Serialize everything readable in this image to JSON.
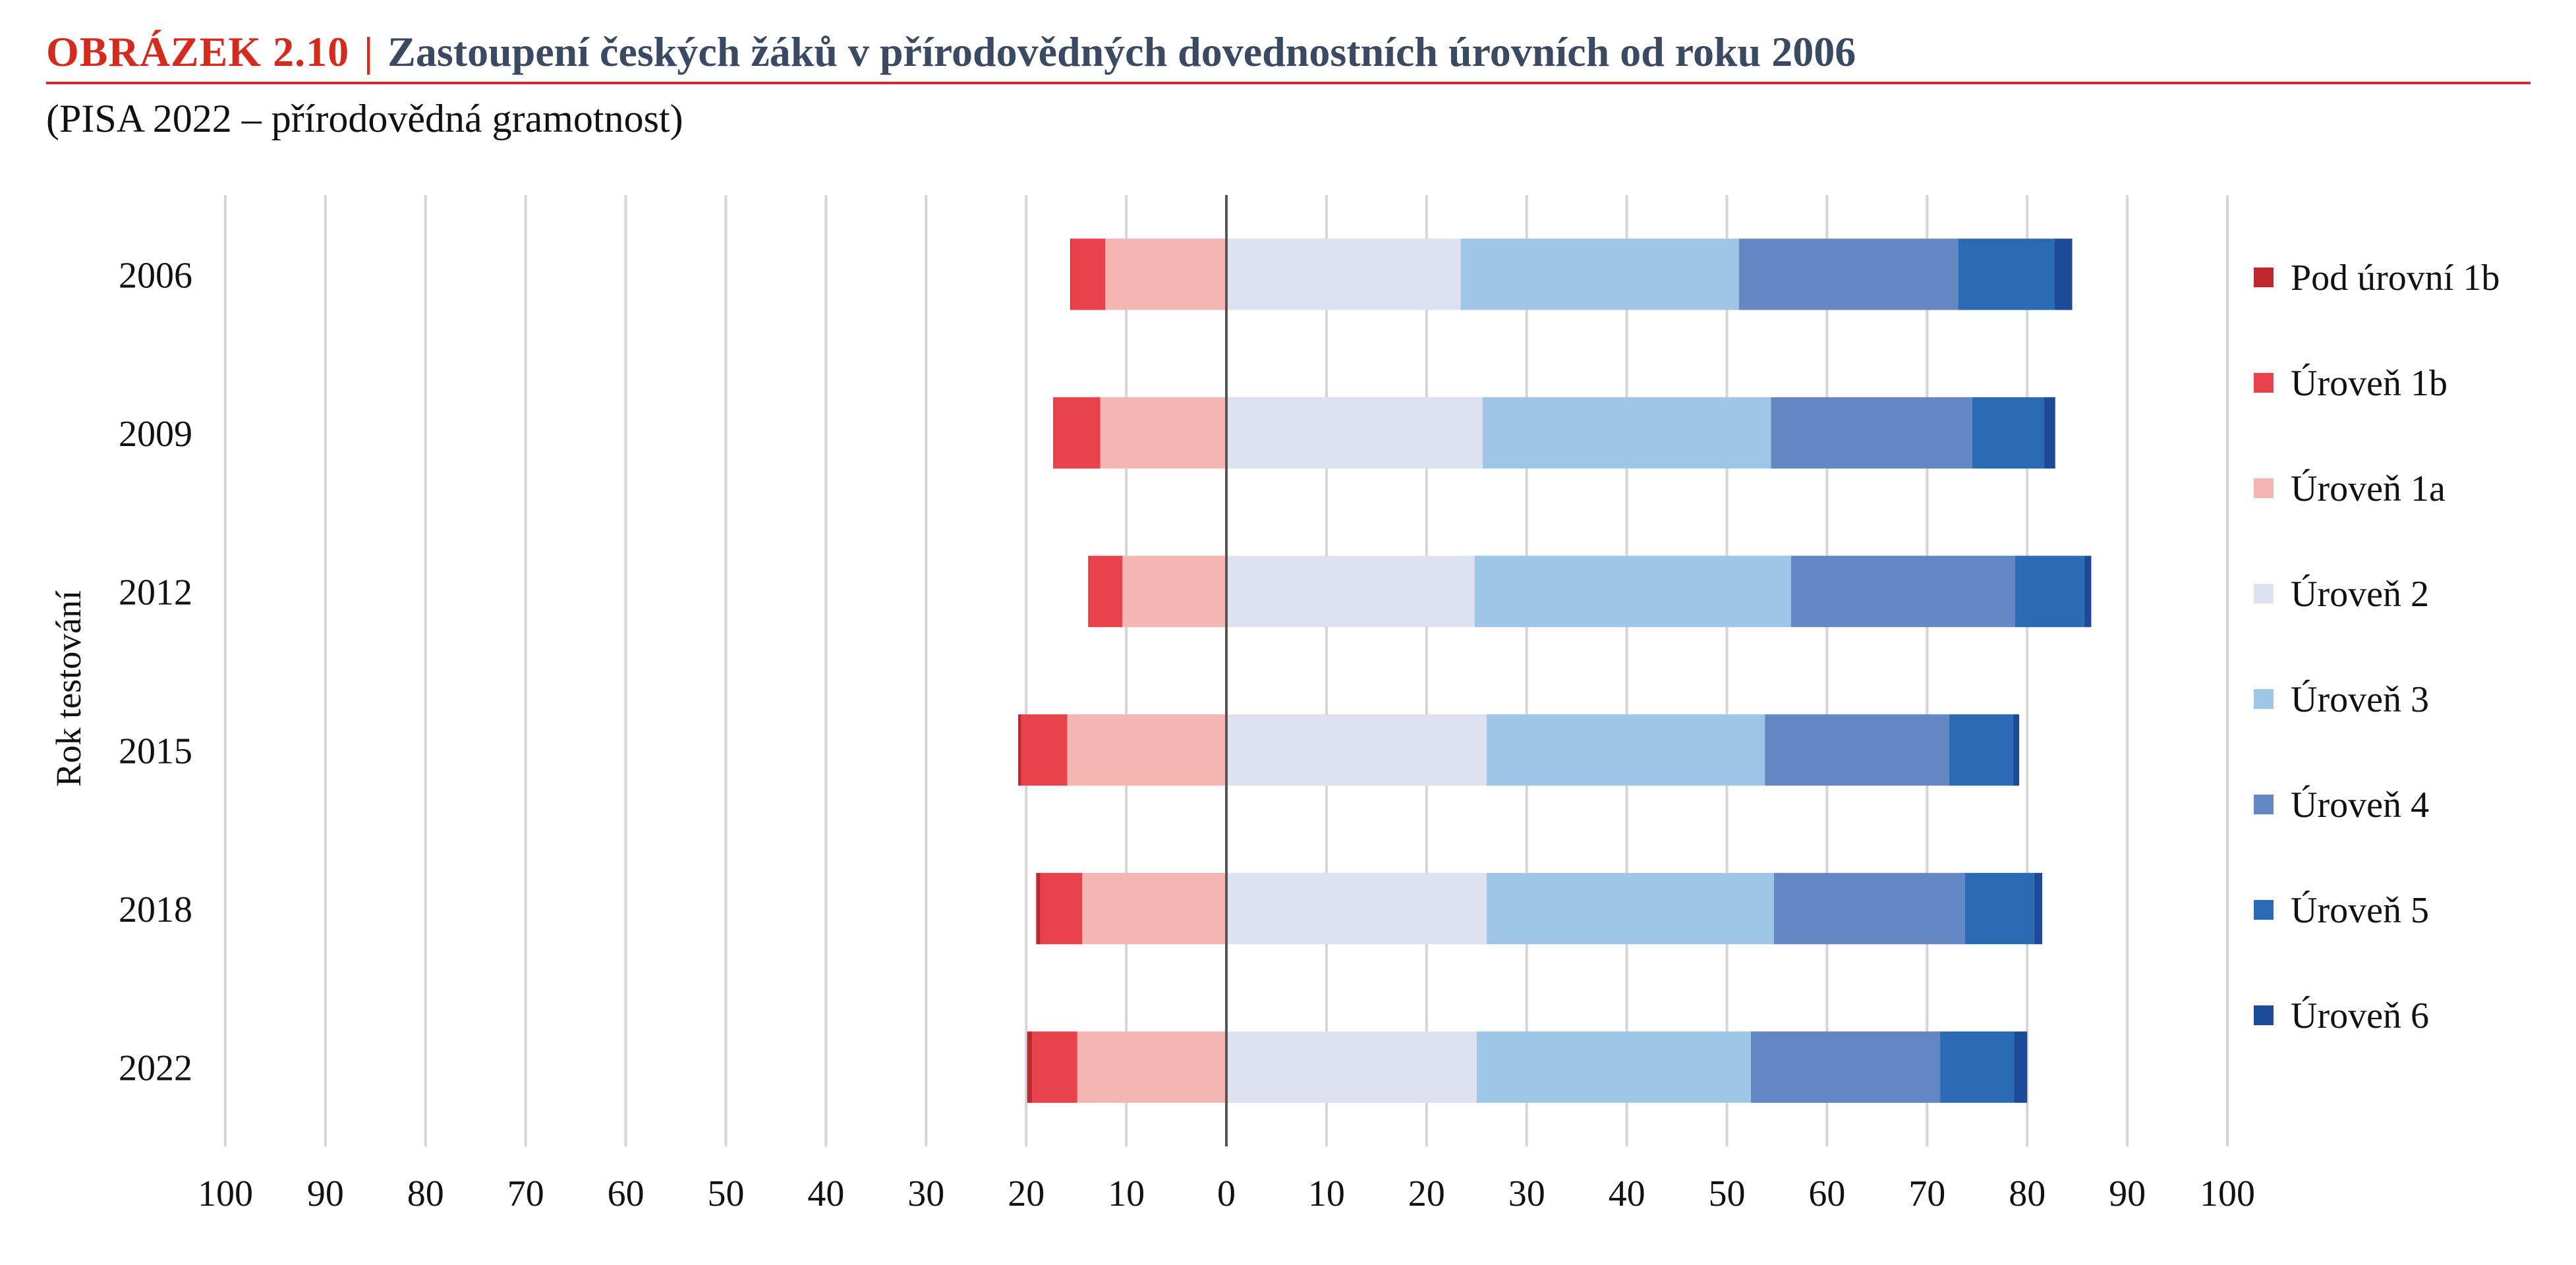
{
  "figure": {
    "label": "OBRÁZEK 2.10",
    "separator": "|",
    "title": "Zastoupení českých žáků v přírodovědných dovednostních úrovních od roku 2006",
    "subtitle": "(PISA 2022 – přírodovědná gramotnost)"
  },
  "chart_data": {
    "type": "bar",
    "orientation": "horizontal",
    "stacked": "diverging",
    "ylabel": "Rok testování",
    "xlabel": "",
    "xlim": [
      -100,
      100
    ],
    "x_ticks": [
      -100,
      -90,
      -80,
      -70,
      -60,
      -50,
      -40,
      -30,
      -20,
      -10,
      0,
      10,
      20,
      30,
      40,
      50,
      60,
      70,
      80,
      90,
      100
    ],
    "x_tick_labels": [
      "100",
      "90",
      "80",
      "70",
      "60",
      "50",
      "40",
      "30",
      "20",
      "10",
      "0",
      "10",
      "20",
      "30",
      "40",
      "50",
      "60",
      "70",
      "80",
      "90",
      "100"
    ],
    "grid": true,
    "legend_position": "right",
    "categories": [
      "2006",
      "2009",
      "2012",
      "2015",
      "2018",
      "2022"
    ],
    "series": [
      {
        "name": "Pod úrovní 1b",
        "side": "negative",
        "color": "#c0262d",
        "values": [
          0.1,
          0.1,
          0.1,
          0.3,
          0.4,
          0.5
        ]
      },
      {
        "name": "Úroveň 1b",
        "side": "negative",
        "color": "#e8434b",
        "values": [
          3.4,
          4.6,
          3.3,
          4.6,
          4.2,
          4.5
        ]
      },
      {
        "name": "Úroveň 1a",
        "side": "negative",
        "color": "#f5b5b3",
        "values": [
          12.1,
          12.6,
          10.4,
          15.9,
          14.4,
          14.9
        ]
      },
      {
        "name": "Úroveň 2",
        "side": "positive",
        "color": "#dde1f0",
        "values": [
          23.4,
          25.6,
          24.8,
          26.0,
          26.0,
          25.0
        ]
      },
      {
        "name": "Úroveň 3",
        "side": "positive",
        "color": "#9fc6e8",
        "values": [
          27.8,
          28.8,
          31.6,
          27.8,
          28.7,
          27.4
        ]
      },
      {
        "name": "Úroveň 4",
        "side": "positive",
        "color": "#6587c4",
        "values": [
          21.9,
          20.1,
          22.4,
          18.4,
          19.1,
          18.9
        ]
      },
      {
        "name": "Úroveň 5",
        "side": "positive",
        "color": "#2b6ab5",
        "values": [
          9.6,
          7.2,
          6.9,
          6.4,
          6.9,
          7.4
        ]
      },
      {
        "name": "Úroveň 6",
        "side": "positive",
        "color": "#1d4a99",
        "values": [
          1.8,
          1.1,
          0.7,
          0.6,
          0.8,
          1.3
        ]
      }
    ]
  }
}
